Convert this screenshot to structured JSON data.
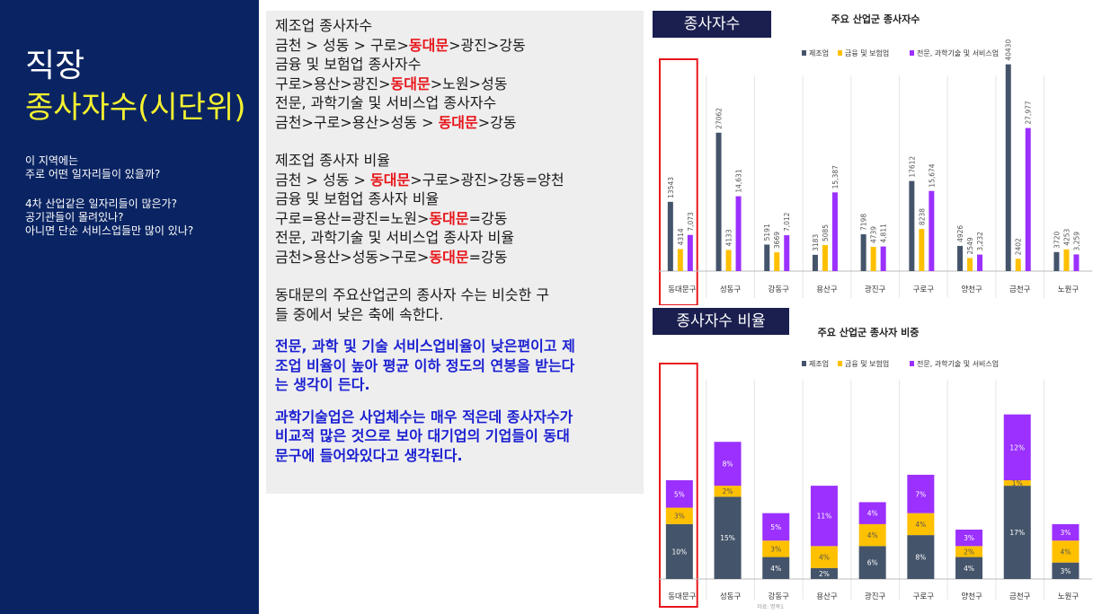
{
  "sidebar": {
    "title_line1": "직장",
    "title_line2": "종사자수(시단위)",
    "questions1": [
      "이 지역에는",
      "주로 어떤 일자리들이 있을까?"
    ],
    "questions2": [
      "4차 산업같은 일자리들이 많은가?",
      "공기관들이 몰려있나?",
      "아니면 단순 서비스업들만 많이 있나?"
    ]
  },
  "text_panel": {
    "rank_header1": "제조업 종사자수",
    "rank1": [
      "금천 > 성동 > 구로>",
      "동대문",
      ">광진>강동"
    ],
    "rank_header2": "금융 및 보험업 종사자수",
    "rank2": [
      "구로>용산>광진>",
      "동대문",
      ">노원>성동"
    ],
    "rank_header3": "전문, 과학기술 및 서비스업 종사자수",
    "rank3": [
      "금천>구로>용산>성동 > ",
      "동대문",
      ">강동"
    ],
    "ratio_header1": "제조업 종사자 비율",
    "ratio1": [
      "금천 > 성동 > ",
      "동대문",
      ">구로>광진>강동=양천"
    ],
    "ratio_header2": "금융 및 보험업 종사자 비율",
    "ratio2": [
      "구로=용산=광진=노원>",
      "동대문",
      "=강동"
    ],
    "ratio_header3": "전문, 과학기술 및 서비스업 종사자 비율",
    "ratio3": [
      "금천>용산>성동>구로>",
      "동대문",
      "=강동"
    ],
    "para1_lines": [
      "동대문의 주요산업군의 종사자 수는 비슷한 구",
      "들 중에서 낮은 축에 속한다."
    ],
    "para2_lines": [
      "전문, 과학 및 기술 서비스업비율이 낮은편이고 제",
      "조업 비율이 높아 평균 이하 정도의 연봉을 받는다",
      "는 생각이 든다."
    ],
    "para3_lines": [
      "과학기술업은 사업체수는 매우 적은데 종사자수가",
      "비교적 많은 것으로 보아 대기업의 기업들이 동대",
      "문구에 들어와있다고 생각된다."
    ]
  },
  "colors": {
    "sidebar_bg": "#0a2463",
    "highlight_red": "#e8161b",
    "emphasis_blue": "#1a1fd1",
    "manufacturing": "#44546a",
    "finance": "#ffc000",
    "science": "#9b30ff"
  },
  "chart_data": [
    {
      "type": "bar",
      "tab_label": "종사자수",
      "title": "주요 산업군 종사자수",
      "categories": [
        "동대문구",
        "성동구",
        "강동구",
        "용산구",
        "광진구",
        "구로구",
        "양천구",
        "금천구",
        "노원구"
      ],
      "series": [
        {
          "name": "제조업",
          "values": [
            13543,
            27062,
            5191,
            3183,
            7198,
            17612,
            4926,
            40430,
            3720
          ],
          "labels": [
            "13543",
            "27062",
            "5191",
            "3183",
            "7198",
            "17612",
            "4926",
            "40430",
            "3720"
          ]
        },
        {
          "name": "금융 및 보험업",
          "values": [
            4314,
            4133,
            3669,
            5085,
            4739,
            8238,
            2549,
            2402,
            4253
          ],
          "labels": [
            "4314",
            "4133",
            "3669",
            "5085",
            "4739",
            "8238",
            "2549",
            "2402",
            "4253"
          ]
        },
        {
          "name": "전문, 과학기술 및 서비스업",
          "values": [
            7073,
            14631,
            7012,
            15387,
            4811,
            15674,
            3232,
            27977,
            3259
          ],
          "labels": [
            "7,073",
            "14,631",
            "7,012",
            "15,387",
            "4,811",
            "15,674",
            "3,232",
            "27,977",
            "3,259"
          ]
        }
      ],
      "ylim": [
        0,
        43000
      ],
      "legend": "top",
      "highlight_category": "동대문구"
    },
    {
      "type": "bar",
      "stacked": true,
      "tab_label": "종사자수 비율",
      "title": "주요 산업군 종사자 비중",
      "categories": [
        "동대문구",
        "성동구",
        "강동구",
        "용산구",
        "광진구",
        "구로구",
        "양천구",
        "금천구",
        "노원구"
      ],
      "series": [
        {
          "name": "제조업",
          "values": [
            10,
            15,
            4,
            2,
            6,
            8,
            4,
            17,
            3
          ]
        },
        {
          "name": "금융 및 보험업",
          "values": [
            3,
            2,
            3,
            4,
            4,
            4,
            2,
            1,
            4
          ]
        },
        {
          "name": "전문, 과학기술 및 서비스업",
          "values": [
            5,
            8,
            5,
            11,
            4,
            7,
            3,
            12,
            3
          ]
        }
      ],
      "unit": "%",
      "ylim": [
        0,
        36
      ],
      "legend": "top",
      "highlight_category": "동대문구",
      "footer": "자료: 명목1"
    }
  ]
}
